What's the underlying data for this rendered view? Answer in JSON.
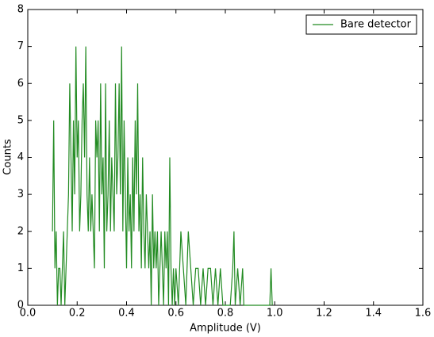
{
  "chart_data": {
    "type": "line",
    "xlabel": "Amplitude (V)",
    "ylabel": "Counts",
    "x": [
      0.1,
      0.105,
      0.11,
      0.115,
      0.12,
      0.125,
      0.13,
      0.135,
      0.14,
      0.145,
      0.15,
      0.155,
      0.16,
      0.165,
      0.17,
      0.175,
      0.18,
      0.185,
      0.19,
      0.195,
      0.2,
      0.205,
      0.21,
      0.215,
      0.22,
      0.225,
      0.23,
      0.235,
      0.24,
      0.245,
      0.25,
      0.255,
      0.26,
      0.265,
      0.27,
      0.275,
      0.28,
      0.285,
      0.29,
      0.295,
      0.3,
      0.305,
      0.31,
      0.315,
      0.32,
      0.325,
      0.33,
      0.335,
      0.34,
      0.345,
      0.35,
      0.355,
      0.36,
      0.365,
      0.37,
      0.375,
      0.38,
      0.385,
      0.39,
      0.395,
      0.4,
      0.405,
      0.41,
      0.415,
      0.42,
      0.425,
      0.43,
      0.435,
      0.44,
      0.445,
      0.45,
      0.455,
      0.46,
      0.465,
      0.47,
      0.475,
      0.48,
      0.485,
      0.49,
      0.495,
      0.5,
      0.505,
      0.51,
      0.515,
      0.52,
      0.525,
      0.53,
      0.535,
      0.54,
      0.545,
      0.55,
      0.555,
      0.56,
      0.565,
      0.57,
      0.575,
      0.58,
      0.585,
      0.59,
      0.595,
      0.6,
      0.61,
      0.62,
      0.63,
      0.64,
      0.65,
      0.66,
      0.67,
      0.68,
      0.69,
      0.7,
      0.71,
      0.72,
      0.73,
      0.74,
      0.75,
      0.76,
      0.77,
      0.78,
      0.79,
      0.8,
      0.81,
      0.82,
      0.83,
      0.835,
      0.84,
      0.85,
      0.86,
      0.87,
      0.875,
      0.98,
      0.985,
      0.99
    ],
    "series": [
      {
        "name": "Bare detector",
        "color": "#228b22",
        "values": [
          2,
          5,
          1,
          2,
          0,
          1,
          1,
          0,
          1,
          2,
          0,
          1,
          2,
          3,
          6,
          4,
          2,
          5,
          3,
          7,
          4,
          5,
          2,
          3,
          5,
          6,
          4,
          7,
          3,
          2,
          4,
          2,
          3,
          2,
          1,
          5,
          4,
          5,
          2,
          6,
          3,
          4,
          1,
          6,
          2,
          3,
          5,
          2,
          4,
          3,
          2,
          6,
          3,
          4,
          6,
          3,
          7,
          2,
          5,
          3,
          1,
          4,
          2,
          3,
          1,
          4,
          2,
          5,
          3,
          6,
          2,
          3,
          1,
          4,
          2,
          1,
          3,
          2,
          1,
          2,
          0,
          3,
          1,
          2,
          1,
          2,
          0,
          1,
          2,
          1,
          0,
          2,
          1,
          2,
          0,
          4,
          1,
          0,
          1,
          0,
          1,
          0,
          2,
          1,
          0,
          2,
          1,
          0,
          1,
          1,
          0,
          1,
          0,
          1,
          1,
          0,
          1,
          0,
          1,
          0,
          0,
          0,
          0,
          1,
          2,
          0,
          1,
          0,
          1,
          0,
          0,
          1,
          0
        ]
      }
    ],
    "xlim": [
      0,
      1.6
    ],
    "xticks": [
      {
        "value": 0,
        "label": "0.0"
      },
      0.2,
      0.4,
      0.6,
      0.8,
      {
        "value": 1,
        "label": "1.0"
      },
      1.2,
      1.4,
      1.6
    ],
    "ylim": [
      0,
      8
    ],
    "yticks": [
      0,
      1,
      2,
      3,
      4,
      5,
      6,
      7,
      8
    ],
    "legend": "upper right"
  }
}
